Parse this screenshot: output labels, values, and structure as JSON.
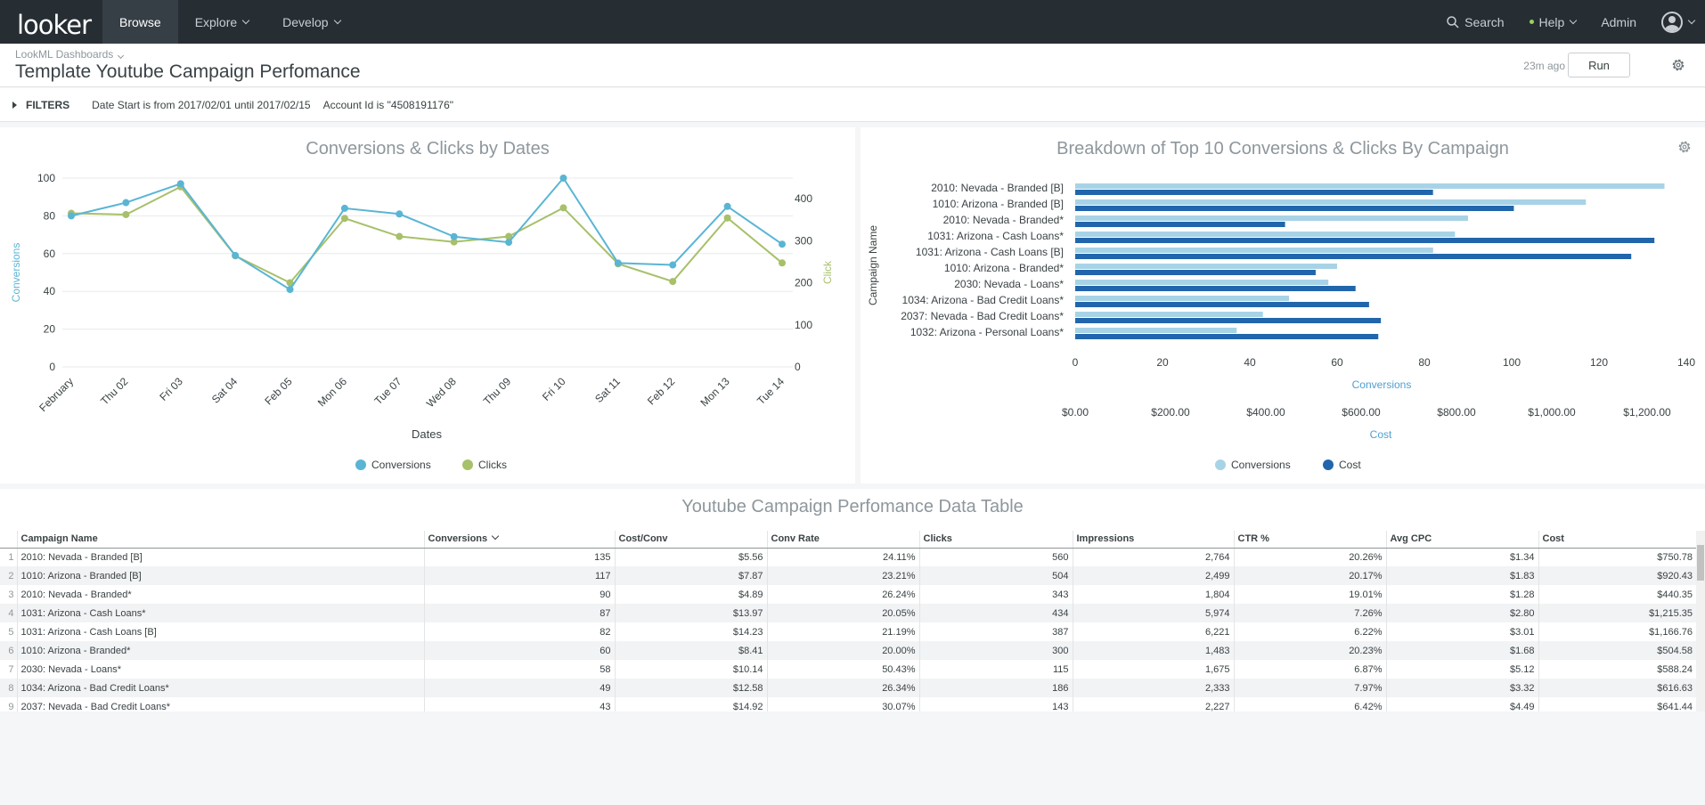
{
  "app": {
    "logo": "looker"
  },
  "nav": {
    "items": [
      {
        "label": "Browse"
      },
      {
        "label": "Explore"
      },
      {
        "label": "Develop"
      }
    ],
    "search": "Search",
    "help": "Help",
    "admin": "Admin"
  },
  "header": {
    "breadcrumb": "LookML Dashboards",
    "title": "Template Youtube Campaign Perfomance",
    "updated": "23m ago",
    "run": "Run"
  },
  "filters": {
    "label": "FILTERS",
    "items": [
      "Date Start is from 2017/02/01 until 2017/02/15",
      "Account Id is \"4508191176\""
    ]
  },
  "colors": {
    "conversions_line": "#5ab5d4",
    "clicks_line": "#a7c06a",
    "conversions_bar": "#a8d3e6",
    "cost_bar": "#2166ac"
  },
  "chart_data": [
    {
      "type": "line",
      "title": "Conversions & Clicks by Dates",
      "xlabel": "Dates",
      "ylabel": "Conversions",
      "y2label": "Click",
      "categories": [
        "February",
        "Thu 02",
        "Fri 03",
        "Sat 04",
        "Feb 05",
        "Mon 06",
        "Tue 07",
        "Wed 08",
        "Thu 09",
        "Fri 10",
        "Sat 11",
        "Feb 12",
        "Mon 13",
        "Tue 14"
      ],
      "ylim": [
        0,
        100
      ],
      "yticks": [
        0,
        20,
        40,
        60,
        80,
        100
      ],
      "y2lim": [
        0,
        400
      ],
      "y2ticks": [
        0,
        100,
        200,
        300,
        400
      ],
      "series": [
        {
          "name": "Conversions",
          "axis": "left",
          "values": [
            80,
            87,
            97,
            59,
            41,
            84,
            81,
            69,
            66,
            100,
            55,
            54,
            85,
            65
          ]
        },
        {
          "name": "Clicks",
          "axis": "right",
          "values": [
            365,
            362,
            428,
            264,
            200,
            353,
            310,
            297,
            310,
            378,
            245,
            203,
            354,
            247
          ]
        }
      ],
      "legend": "bottom"
    },
    {
      "type": "bar",
      "orientation": "horizontal",
      "title": "Breakdown of Top 10 Conversions & Clicks By Campaign",
      "ylabel": "Campaign Name",
      "xlabel": "Conversions",
      "x2label": "Cost",
      "categories": [
        "2010: Nevada - Branded [B]",
        "1010: Arizona - Branded [B]",
        "2010: Nevada - Branded*",
        "1031: Arizona - Cash Loans*",
        "1031: Arizona - Cash Loans [B]",
        "1010: Arizona - Branded*",
        "2030: Nevada - Loans*",
        "1034: Arizona - Bad Credit Loans*",
        "2037: Nevada - Bad Credit Loans*",
        "1032: Arizona - Personal Loans*"
      ],
      "xlim": [
        0,
        140
      ],
      "xticks": [
        0,
        20,
        40,
        60,
        80,
        100,
        120,
        140
      ],
      "x2lim": [
        0,
        1300
      ],
      "x2ticks": [
        "$0.00",
        "$200.00",
        "$400.00",
        "$600.00",
        "$800.00",
        "$1,000.00",
        "$1,200.00"
      ],
      "series": [
        {
          "name": "Conversions",
          "values": [
            135,
            117,
            90,
            87,
            82,
            60,
            58,
            49,
            43,
            37
          ]
        },
        {
          "name": "Cost",
          "values": [
            750.78,
            920.43,
            440.35,
            1215.35,
            1166.76,
            504.58,
            588.24,
            616.63,
            641.44,
            636.0
          ]
        }
      ],
      "legend": "bottom"
    }
  ],
  "table": {
    "title": "Youtube Campaign Perfomance Data Table",
    "columns": [
      "Campaign Name",
      "Conversions",
      "Cost/Conv",
      "Conv Rate",
      "Clicks",
      "Impressions",
      "CTR %",
      "Avg CPC",
      "Cost"
    ],
    "rows": [
      [
        "1",
        "2010: Nevada - Branded [B]",
        "135",
        "$5.56",
        "24.11%",
        "560",
        "2,764",
        "20.26%",
        "$1.34",
        "$750.78"
      ],
      [
        "2",
        "1010: Arizona - Branded [B]",
        "117",
        "$7.87",
        "23.21%",
        "504",
        "2,499",
        "20.17%",
        "$1.83",
        "$920.43"
      ],
      [
        "3",
        "2010: Nevada - Branded*",
        "90",
        "$4.89",
        "26.24%",
        "343",
        "1,804",
        "19.01%",
        "$1.28",
        "$440.35"
      ],
      [
        "4",
        "1031: Arizona - Cash Loans*",
        "87",
        "$13.97",
        "20.05%",
        "434",
        "5,974",
        "7.26%",
        "$2.80",
        "$1,215.35"
      ],
      [
        "5",
        "1031: Arizona - Cash Loans [B]",
        "82",
        "$14.23",
        "21.19%",
        "387",
        "6,221",
        "6.22%",
        "$3.01",
        "$1,166.76"
      ],
      [
        "6",
        "1010: Arizona - Branded*",
        "60",
        "$8.41",
        "20.00%",
        "300",
        "1,483",
        "20.23%",
        "$1.68",
        "$504.58"
      ],
      [
        "7",
        "2030: Nevada - Loans*",
        "58",
        "$10.14",
        "50.43%",
        "115",
        "1,675",
        "6.87%",
        "$5.12",
        "$588.24"
      ],
      [
        "8",
        "1034: Arizona - Bad Credit Loans*",
        "49",
        "$12.58",
        "26.34%",
        "186",
        "2,333",
        "7.97%",
        "$3.32",
        "$616.63"
      ],
      [
        "9",
        "2037: Nevada - Bad Credit Loans*",
        "43",
        "$14.92",
        "30.07%",
        "143",
        "2,227",
        "6.42%",
        "$4.49",
        "$641.44"
      ]
    ]
  }
}
